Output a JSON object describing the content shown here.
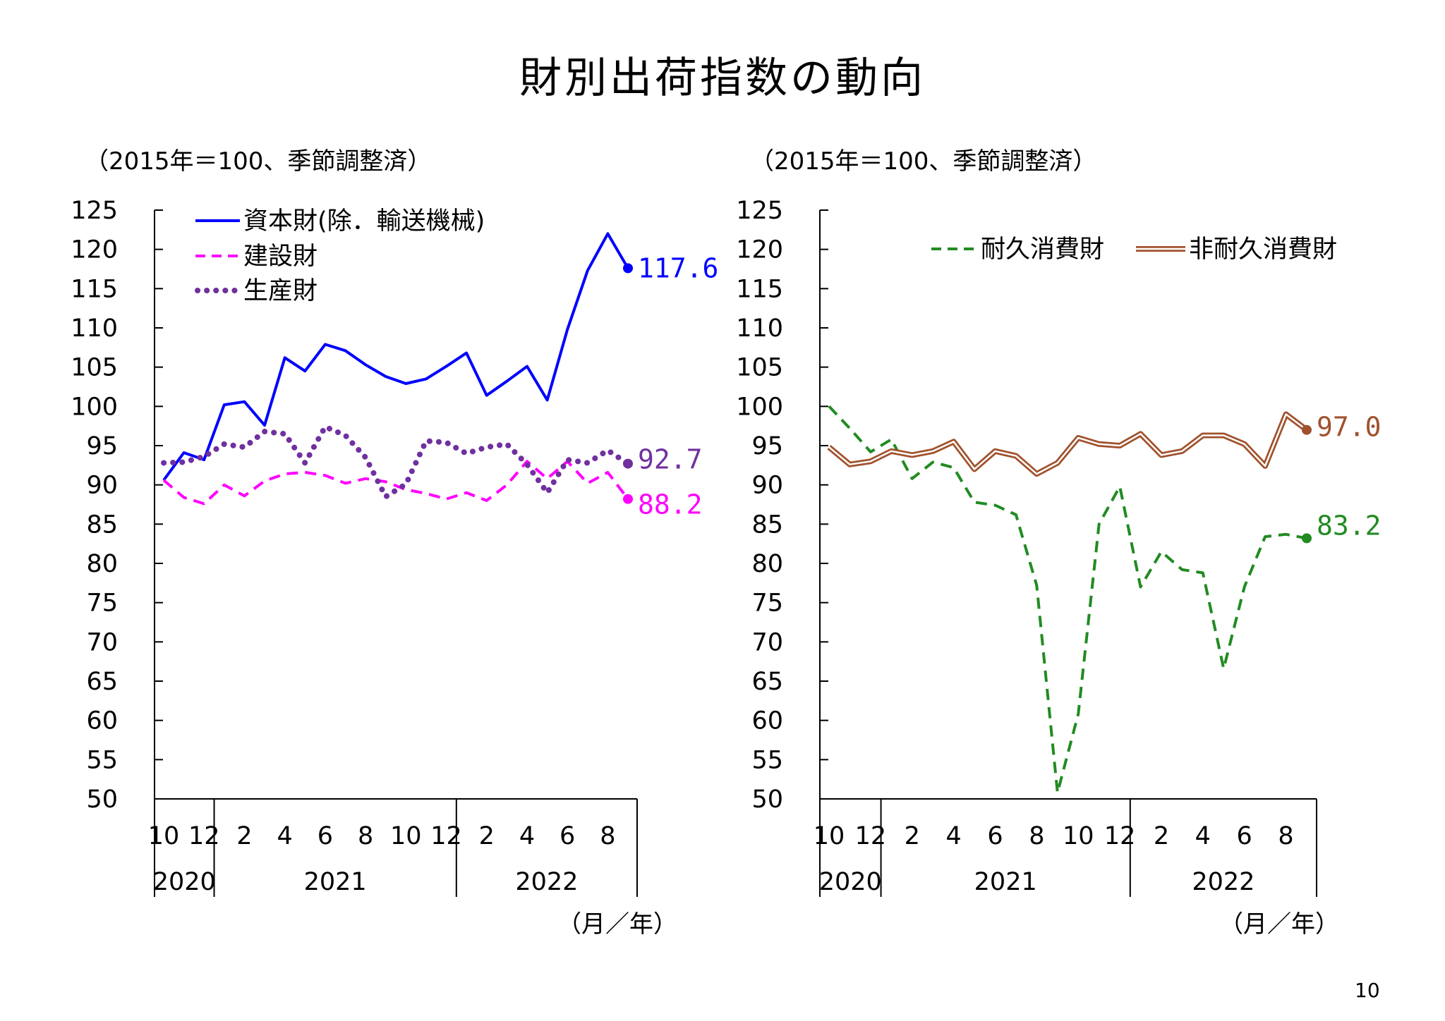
{
  "page": {
    "title": "財別出荷指数の動向",
    "page_number": "10"
  },
  "chart_data": [
    {
      "type": "line",
      "unit_note": "（2015年＝100、季節調整済）",
      "xlabel": "（月／年）",
      "ylim": [
        50,
        125
      ],
      "yticks": [
        "125",
        "120",
        "115",
        "110",
        "105",
        "100",
        "95",
        "90",
        "85",
        "80",
        "75",
        "70",
        "65",
        "60",
        "55",
        "50"
      ],
      "month_ticks": [
        {
          "i": 0,
          "label": "10"
        },
        {
          "i": 2,
          "label": "12"
        },
        {
          "i": 4,
          "label": "2"
        },
        {
          "i": 6,
          "label": "4"
        },
        {
          "i": 8,
          "label": "6"
        },
        {
          "i": 10,
          "label": "8"
        },
        {
          "i": 12,
          "label": "10"
        },
        {
          "i": 14,
          "label": "12"
        },
        {
          "i": 16,
          "label": "2"
        },
        {
          "i": 18,
          "label": "4"
        },
        {
          "i": 20,
          "label": "6"
        },
        {
          "i": 22,
          "label": "8"
        }
      ],
      "year_groups": [
        {
          "label": "2020",
          "start": 0,
          "end": 2
        },
        {
          "label": "2021",
          "start": 3,
          "end": 14
        },
        {
          "label": "2022",
          "start": 15,
          "end": 23
        }
      ],
      "x": [
        "2020-10",
        "2020-11",
        "2020-12",
        "2021-01",
        "2021-02",
        "2021-03",
        "2021-04",
        "2021-05",
        "2021-06",
        "2021-07",
        "2021-08",
        "2021-09",
        "2021-10",
        "2021-11",
        "2021-12",
        "2022-01",
        "2022-02",
        "2022-03",
        "2022-04",
        "2022-05",
        "2022-06",
        "2022-07",
        "2022-08",
        "2022-09"
      ],
      "series": [
        {
          "name": "資本財(除．輸送機械)",
          "style": "solid",
          "color": "#0000ff",
          "end_label": "117.6",
          "values": [
            90.6,
            94.1,
            93.2,
            100.2,
            100.6,
            97.6,
            106.2,
            104.5,
            107.9,
            107.1,
            105.3,
            103.8,
            102.9,
            103.5,
            105.1,
            106.8,
            101.4,
            103.2,
            105.1,
            100.8,
            109.8,
            117.3,
            122.0,
            117.6
          ]
        },
        {
          "name": "建設財",
          "style": "dashed",
          "color": "#ff00ff",
          "end_label": "88.2",
          "values": [
            90.6,
            88.4,
            87.6,
            90.0,
            88.6,
            90.5,
            91.4,
            91.6,
            91.2,
            90.2,
            90.8,
            90.4,
            89.4,
            88.9,
            88.2,
            89.0,
            88.0,
            90.0,
            93.0,
            90.8,
            93.0,
            90.2,
            91.6,
            88.2
          ]
        },
        {
          "name": "生産財",
          "style": "dotted",
          "color": "#7030a0",
          "end_label": "92.7",
          "values": [
            92.8,
            92.9,
            93.6,
            95.2,
            94.8,
            96.8,
            96.5,
            92.8,
            97.4,
            96.3,
            93.5,
            88.5,
            90.1,
            95.6,
            95.4,
            94.0,
            94.8,
            95.2,
            92.6,
            89.0,
            93.2,
            92.8,
            94.4,
            92.7
          ]
        }
      ]
    },
    {
      "type": "line",
      "unit_note": "（2015年＝100、季節調整済）",
      "xlabel": "（月／年）",
      "ylim": [
        50,
        125
      ],
      "yticks": [
        "125",
        "120",
        "115",
        "110",
        "105",
        "100",
        "95",
        "90",
        "85",
        "80",
        "75",
        "70",
        "65",
        "60",
        "55",
        "50"
      ],
      "month_ticks": [
        {
          "i": 0,
          "label": "10"
        },
        {
          "i": 2,
          "label": "12"
        },
        {
          "i": 4,
          "label": "2"
        },
        {
          "i": 6,
          "label": "4"
        },
        {
          "i": 8,
          "label": "6"
        },
        {
          "i": 10,
          "label": "8"
        },
        {
          "i": 12,
          "label": "10"
        },
        {
          "i": 14,
          "label": "12"
        },
        {
          "i": 16,
          "label": "2"
        },
        {
          "i": 18,
          "label": "4"
        },
        {
          "i": 20,
          "label": "6"
        },
        {
          "i": 22,
          "label": "8"
        }
      ],
      "year_groups": [
        {
          "label": "2020",
          "start": 0,
          "end": 2
        },
        {
          "label": "2021",
          "start": 3,
          "end": 14
        },
        {
          "label": "2022",
          "start": 15,
          "end": 23
        }
      ],
      "x": [
        "2020-10",
        "2020-11",
        "2020-12",
        "2021-01",
        "2021-02",
        "2021-03",
        "2021-04",
        "2021-05",
        "2021-06",
        "2021-07",
        "2021-08",
        "2021-09",
        "2021-10",
        "2021-11",
        "2021-12",
        "2022-01",
        "2022-02",
        "2022-03",
        "2022-04",
        "2022-05",
        "2022-06",
        "2022-07",
        "2022-08",
        "2022-09"
      ],
      "series": [
        {
          "name": "耐久消費財",
          "style": "dashed",
          "color": "#228b22",
          "end_label": "83.2",
          "values": [
            100.0,
            97.2,
            94.2,
            95.8,
            90.8,
            92.9,
            92.2,
            87.8,
            87.4,
            86.2,
            77.2,
            50.8,
            60.8,
            85.0,
            89.8,
            77.0,
            81.5,
            79.2,
            78.8,
            66.6,
            77.0,
            83.4,
            83.7,
            83.2
          ]
        },
        {
          "name": "非耐久消費財",
          "style": "double",
          "color": "#a0522d",
          "end_label": "97.0",
          "values": [
            94.8,
            92.6,
            93.0,
            94.3,
            93.8,
            94.3,
            95.5,
            92.0,
            94.3,
            93.7,
            91.4,
            92.8,
            96.0,
            95.2,
            95.0,
            96.5,
            93.8,
            94.3,
            96.3,
            96.3,
            95.2,
            92.4,
            99.0,
            97.0
          ]
        }
      ]
    }
  ]
}
